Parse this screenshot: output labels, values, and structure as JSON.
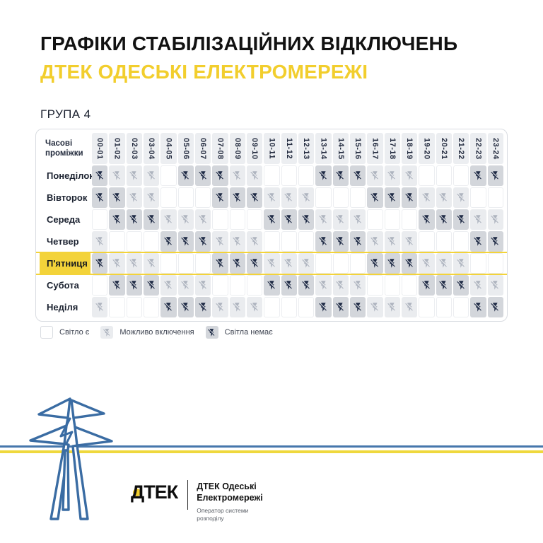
{
  "header": {
    "title": "ГРАФІКИ СТАБІЛІЗАЦІЙНИХ ВІДКЛЮЧЕНЬ",
    "subtitle": "ДТЕК ОДЕСЬКІ ЕЛЕКТРОМЕРЕЖІ",
    "group_label": "ГРУПА 4"
  },
  "schedule": {
    "corner_label": "Часові проміжки",
    "time_slots": [
      "00-01",
      "01-02",
      "02-03",
      "03-04",
      "04-05",
      "05-06",
      "06-07",
      "07-08",
      "08-09",
      "09-10",
      "10-11",
      "11-12",
      "12-13",
      "13-14",
      "14-15",
      "15-16",
      "16-17",
      "17-18",
      "18-19",
      "19-20",
      "20-21",
      "21-22",
      "22-23",
      "23-24"
    ],
    "days": [
      {
        "label": "Понеділок",
        "highlight": false,
        "cells": [
          "off",
          "maybe",
          "maybe",
          "maybe",
          "on",
          "off",
          "off",
          "off",
          "maybe",
          "maybe",
          "on",
          "on",
          "on",
          "off",
          "off",
          "off",
          "maybe",
          "maybe",
          "maybe",
          "on",
          "on",
          "on",
          "off",
          "off"
        ]
      },
      {
        "label": "Вівторок",
        "highlight": false,
        "cells": [
          "off",
          "off",
          "maybe",
          "maybe",
          "on",
          "on",
          "on",
          "off",
          "off",
          "off",
          "maybe",
          "maybe",
          "maybe",
          "on",
          "on",
          "on",
          "off",
          "off",
          "off",
          "maybe",
          "maybe",
          "maybe",
          "on",
          "on"
        ]
      },
      {
        "label": "Середа",
        "highlight": false,
        "cells": [
          "on",
          "off",
          "off",
          "off",
          "maybe",
          "maybe",
          "maybe",
          "on",
          "on",
          "on",
          "off",
          "off",
          "off",
          "maybe",
          "maybe",
          "maybe",
          "on",
          "on",
          "on",
          "off",
          "off",
          "off",
          "maybe",
          "maybe"
        ]
      },
      {
        "label": "Четвер",
        "highlight": false,
        "cells": [
          "maybe",
          "on",
          "on",
          "on",
          "off",
          "off",
          "off",
          "maybe",
          "maybe",
          "maybe",
          "on",
          "on",
          "on",
          "off",
          "off",
          "off",
          "maybe",
          "maybe",
          "maybe",
          "on",
          "on",
          "on",
          "off",
          "off"
        ]
      },
      {
        "label": "П'ятниця",
        "highlight": true,
        "cells": [
          "off",
          "maybe",
          "maybe",
          "maybe",
          "on",
          "on",
          "on",
          "off",
          "off",
          "off",
          "maybe",
          "maybe",
          "maybe",
          "on",
          "on",
          "on",
          "off",
          "off",
          "off",
          "maybe",
          "maybe",
          "maybe",
          "on",
          "on"
        ]
      },
      {
        "label": "Субота",
        "highlight": false,
        "cells": [
          "on",
          "off",
          "off",
          "off",
          "maybe",
          "maybe",
          "maybe",
          "on",
          "on",
          "on",
          "off",
          "off",
          "off",
          "maybe",
          "maybe",
          "maybe",
          "on",
          "on",
          "on",
          "off",
          "off",
          "off",
          "maybe",
          "maybe"
        ]
      },
      {
        "label": "Неділя",
        "highlight": false,
        "cells": [
          "maybe",
          "on",
          "on",
          "on",
          "off",
          "off",
          "off",
          "maybe",
          "maybe",
          "maybe",
          "on",
          "on",
          "on",
          "off",
          "off",
          "off",
          "maybe",
          "maybe",
          "maybe",
          "on",
          "on",
          "on",
          "off",
          "off"
        ]
      }
    ]
  },
  "legend": [
    {
      "state": "on",
      "label": "Світло є",
      "icon": "none"
    },
    {
      "state": "maybe",
      "label": "Можливо включення",
      "icon": "flash-off-light"
    },
    {
      "state": "off",
      "label": "Світла немає",
      "icon": "flash-off-dark"
    }
  ],
  "footer": {
    "logo_text": "ДТЕК",
    "company_line1": "ДТЕК Одеські",
    "company_line2": "Електромережі",
    "operator_line1": "Оператор системи",
    "operator_line2": "розподілу"
  },
  "colors": {
    "accent_yellow": "#F2CE2D",
    "highlight_row_yellow": "#F3D33A",
    "cell_off_bg": "#D3D6DB",
    "cell_maybe_bg": "#EAECEF",
    "icon_off": "#1E2A45",
    "icon_maybe": "#AEB4BF",
    "stripe_blue": "#4677AC",
    "stripe_yellow": "#EFD83D",
    "pylon_blue": "#3A6CA3"
  }
}
